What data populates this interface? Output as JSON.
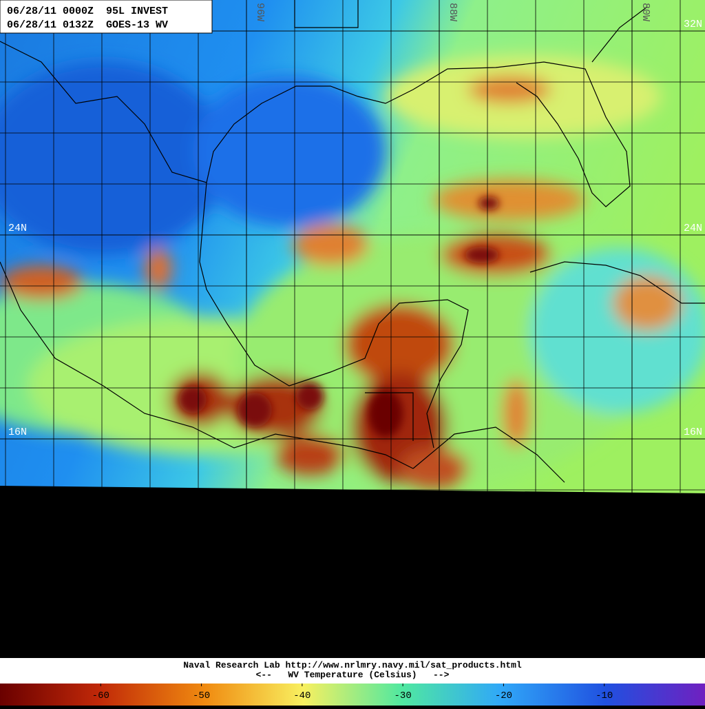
{
  "header": {
    "line1": "06/28/11 0000Z  95L INVEST",
    "line2": "06/28/11 0132Z  GOES-13 WV"
  },
  "lat_labels": [
    {
      "value": 32,
      "label": "32N"
    },
    {
      "value": 24,
      "label": "24N"
    },
    {
      "value": 16,
      "label": "16N"
    }
  ],
  "lon_labels": [
    {
      "value": 96,
      "label": "96W"
    },
    {
      "value": 88,
      "label": "88W"
    },
    {
      "value": 80,
      "label": "80W"
    }
  ],
  "footer": {
    "credit": "Naval Research Lab http://www.nrlmry.navy.mil/sat_products.html",
    "scale_title": "<--   WV Temperature (Celsius)   -->"
  },
  "colorbar": {
    "range": [
      -70,
      0
    ],
    "ticks": [
      -60,
      -50,
      -40,
      -30,
      -20,
      -10
    ]
  }
}
